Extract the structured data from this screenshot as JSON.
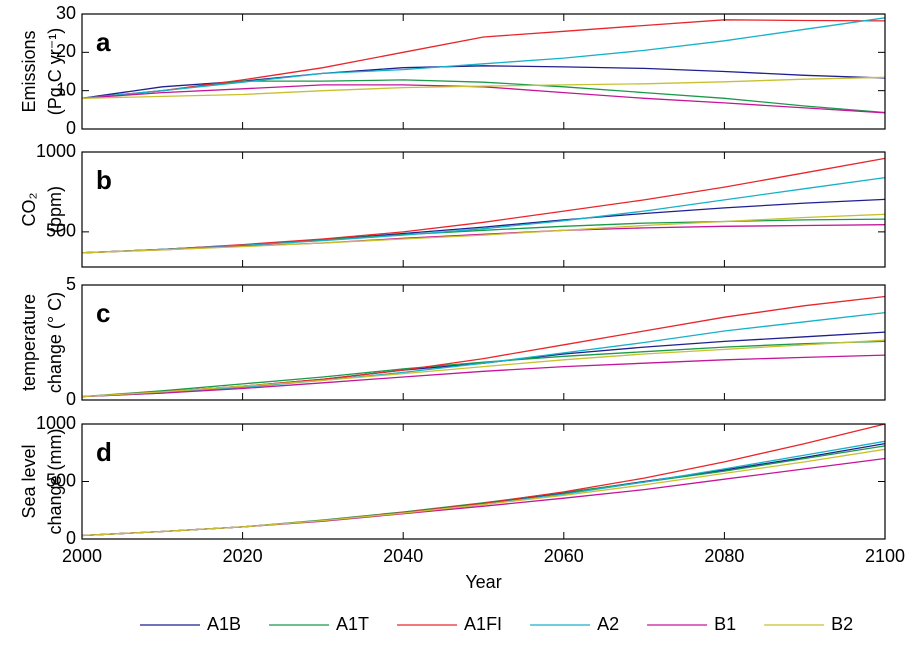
{
  "chart_data": [
    {
      "type": "line",
      "panel_label": "a",
      "ylabel": [
        "Emissions",
        "(Pg C yr⁻¹)"
      ],
      "legend": "bottom",
      "x": [
        2000,
        2010,
        2020,
        2030,
        2040,
        2050,
        2060,
        2070,
        2080,
        2090,
        2100
      ],
      "xlim": [
        2000,
        2100
      ],
      "xticks": [
        2000,
        2020,
        2040,
        2060,
        2080,
        2100
      ],
      "ylim": [
        0,
        30
      ],
      "yticks": [
        0,
        10,
        20,
        30
      ],
      "series": [
        {
          "name": "A1B",
          "color": "#1f1f8f",
          "values": [
            8,
            11,
            12.5,
            14.5,
            16,
            16.5,
            16.2,
            15.8,
            15,
            14,
            13.3
          ]
        },
        {
          "name": "A1T",
          "color": "#1a9a4a",
          "values": [
            8,
            10,
            12.5,
            12.5,
            12.8,
            12.2,
            11,
            9.5,
            8,
            6,
            4.3
          ]
        },
        {
          "name": "A1FI",
          "color": "#e8262b",
          "values": [
            8,
            10,
            12.8,
            16,
            20,
            24,
            25.5,
            27,
            28.5,
            28.3,
            28.2
          ]
        },
        {
          "name": "A2",
          "color": "#17b1c8",
          "values": [
            8,
            10,
            12.2,
            14.5,
            15.5,
            17,
            18.5,
            20.5,
            23,
            26,
            29
          ]
        },
        {
          "name": "B1",
          "color": "#c4169a",
          "values": [
            8,
            9.5,
            10.5,
            11.5,
            11.5,
            11,
            9.5,
            8,
            6.8,
            5.5,
            4.2
          ]
        },
        {
          "name": "B2",
          "color": "#c8c030",
          "values": [
            8,
            8.5,
            9,
            10,
            10.8,
            11.2,
            11.5,
            11.8,
            12.3,
            13,
            13.5
          ]
        }
      ]
    },
    {
      "type": "line",
      "panel_label": "b",
      "ylabel": [
        "CO₂",
        "(ppm)"
      ],
      "x": [
        2000,
        2010,
        2020,
        2030,
        2040,
        2050,
        2060,
        2070,
        2080,
        2090,
        2100
      ],
      "xlim": [
        2000,
        2100
      ],
      "xticks": [
        2000,
        2020,
        2040,
        2060,
        2080,
        2100
      ],
      "ylim": [
        280,
        1000
      ],
      "yticks": [
        500,
        1000
      ],
      "series": [
        {
          "color": "#1f1f8f",
          "values": [
            369,
            390,
            417,
            450,
            490,
            530,
            575,
            615,
            650,
            680,
            703
          ]
        },
        {
          "color": "#1a9a4a",
          "values": [
            369,
            390,
            418,
            450,
            482,
            510,
            535,
            555,
            565,
            575,
            580
          ]
        },
        {
          "color": "#e8262b",
          "values": [
            369,
            390,
            420,
            455,
            500,
            560,
            630,
            700,
            780,
            870,
            960
          ]
        },
        {
          "color": "#17b1c8",
          "values": [
            369,
            390,
            415,
            445,
            480,
            520,
            570,
            630,
            700,
            770,
            840
          ]
        },
        {
          "color": "#c4169a",
          "values": [
            369,
            388,
            410,
            430,
            460,
            485,
            510,
            525,
            535,
            540,
            545
          ]
        },
        {
          "color": "#c8c030",
          "values": [
            369,
            388,
            408,
            430,
            455,
            480,
            510,
            540,
            565,
            590,
            610
          ]
        }
      ]
    },
    {
      "type": "line",
      "panel_label": "c",
      "ylabel": [
        "temperature",
        "change (° C)"
      ],
      "x": [
        2000,
        2010,
        2020,
        2030,
        2040,
        2050,
        2060,
        2070,
        2080,
        2090,
        2100
      ],
      "xlim": [
        2000,
        2100
      ],
      "xticks": [
        2000,
        2020,
        2040,
        2060,
        2080,
        2100
      ],
      "ylim": [
        0,
        5
      ],
      "yticks": [
        0,
        5
      ],
      "series": [
        {
          "color": "#1f1f8f",
          "values": [
            0.15,
            0.35,
            0.6,
            0.9,
            1.3,
            1.6,
            2.0,
            2.3,
            2.55,
            2.75,
            2.95
          ]
        },
        {
          "color": "#1a9a4a",
          "values": [
            0.15,
            0.4,
            0.7,
            1.0,
            1.35,
            1.65,
            1.9,
            2.1,
            2.3,
            2.45,
            2.55
          ]
        },
        {
          "color": "#e8262b",
          "values": [
            0.15,
            0.35,
            0.6,
            0.9,
            1.3,
            1.8,
            2.4,
            3.0,
            3.6,
            4.1,
            4.5
          ]
        },
        {
          "color": "#17b1c8",
          "values": [
            0.15,
            0.3,
            0.55,
            0.85,
            1.2,
            1.6,
            2.05,
            2.5,
            3.0,
            3.4,
            3.8
          ]
        },
        {
          "color": "#c4169a",
          "values": [
            0.15,
            0.3,
            0.5,
            0.75,
            1.0,
            1.25,
            1.45,
            1.6,
            1.75,
            1.85,
            1.95
          ]
        },
        {
          "color": "#c8c030",
          "values": [
            0.15,
            0.35,
            0.6,
            0.85,
            1.15,
            1.45,
            1.75,
            2.0,
            2.2,
            2.4,
            2.6
          ]
        }
      ]
    },
    {
      "type": "line",
      "panel_label": "d",
      "ylabel": [
        "Sea level",
        "change (mm)"
      ],
      "xlabel": "Year",
      "x": [
        2000,
        2010,
        2020,
        2030,
        2040,
        2050,
        2060,
        2070,
        2080,
        2090,
        2100
      ],
      "xlim": [
        2000,
        2100
      ],
      "xticks": [
        2000,
        2020,
        2040,
        2060,
        2080,
        2100
      ],
      "ylim": [
        0,
        1000
      ],
      "yticks": [
        0,
        500,
        1000
      ],
      "series": [
        {
          "color": "#1f1f8f",
          "values": [
            30,
            65,
            105,
            160,
            230,
            310,
            400,
            500,
            600,
            710,
            830
          ]
        },
        {
          "color": "#1a9a4a",
          "values": [
            30,
            65,
            105,
            165,
            235,
            315,
            405,
            495,
            590,
            700,
            810
          ]
        },
        {
          "color": "#e8262b",
          "values": [
            30,
            65,
            105,
            160,
            230,
            310,
            410,
            530,
            670,
            830,
            1000
          ]
        },
        {
          "color": "#17b1c8",
          "values": [
            30,
            65,
            105,
            160,
            225,
            300,
            390,
            495,
            610,
            730,
            850
          ]
        },
        {
          "color": "#c4169a",
          "values": [
            30,
            65,
            105,
            155,
            220,
            285,
            355,
            430,
            520,
            610,
            700
          ]
        },
        {
          "color": "#c8c030",
          "values": [
            30,
            65,
            105,
            160,
            225,
            300,
            380,
            470,
            570,
            670,
            780
          ]
        }
      ]
    }
  ]
}
